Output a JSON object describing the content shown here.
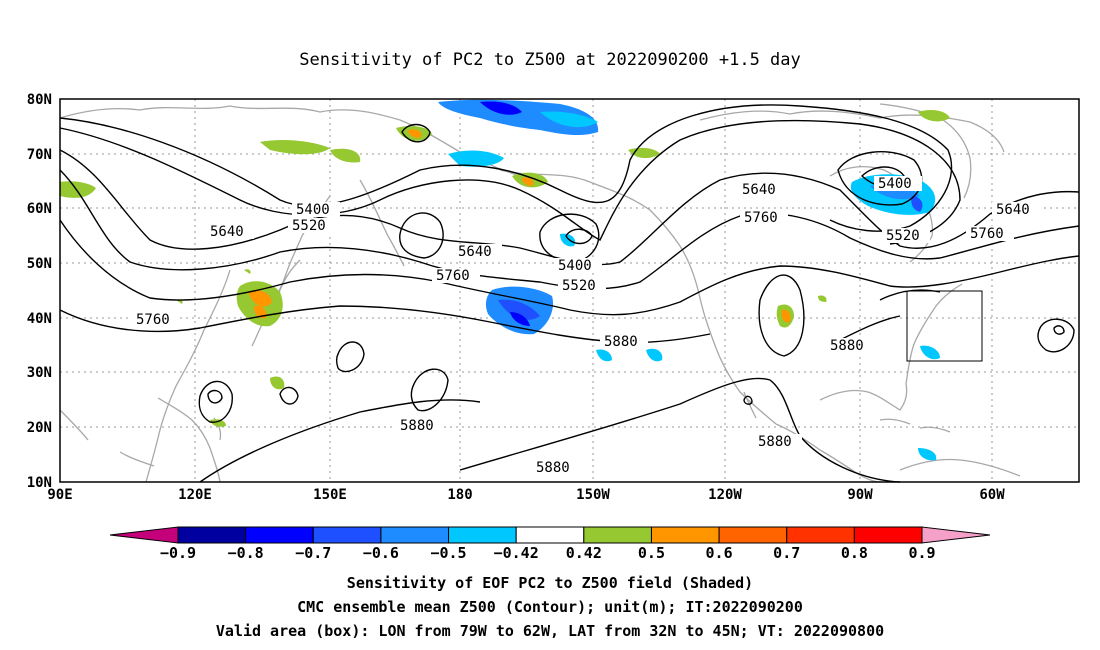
{
  "title": "Sensitivity of PC2 to Z500 at 2022090200 +1.5 day",
  "map": {
    "lat_labels": [
      "80N",
      "70N",
      "60N",
      "50N",
      "40N",
      "30N",
      "20N",
      "10N"
    ],
    "lon_labels": [
      "90E",
      "120E",
      "150E",
      "180",
      "150W",
      "120W",
      "90W",
      "60W"
    ],
    "contour_labels": [
      {
        "text": "5400"
      },
      {
        "text": "5520"
      },
      {
        "text": "5640"
      },
      {
        "text": "5640"
      },
      {
        "text": "5760"
      },
      {
        "text": "5400"
      },
      {
        "text": "5520"
      },
      {
        "text": "5640"
      },
      {
        "text": "5760"
      },
      {
        "text": "5760"
      },
      {
        "text": "5880"
      },
      {
        "text": "5880"
      },
      {
        "text": "5400"
      },
      {
        "text": "5520"
      },
      {
        "text": "5640"
      },
      {
        "text": "5760"
      },
      {
        "text": "5880"
      },
      {
        "text": "5880"
      },
      {
        "text": "5880"
      }
    ]
  },
  "colorbar": {
    "labels": [
      "−0.9",
      "−0.8",
      "−0.7",
      "−0.6",
      "−0.5",
      "−0.42",
      "0.42",
      "0.5",
      "0.6",
      "0.7",
      "0.8",
      "0.9"
    ],
    "colors": [
      "#c4007a",
      "#0000a0",
      "#0000ff",
      "#1e50ff",
      "#1e8cff",
      "#00c8ff",
      "#ffffff",
      "#96c832",
      "#ff9600",
      "#ff6400",
      "#ff3200",
      "#ff0000",
      "#f4a0c8"
    ]
  },
  "captions": {
    "line1": "Sensitivity of EOF PC2 to Z500 field (Shaded)",
    "line2": "CMC ensemble mean Z500 (Contour); unit(m); IT:2022090200",
    "line3": "Valid area (box): LON from 79W to 62W, LAT from 32N to 45N; VT: 2022090800"
  }
}
